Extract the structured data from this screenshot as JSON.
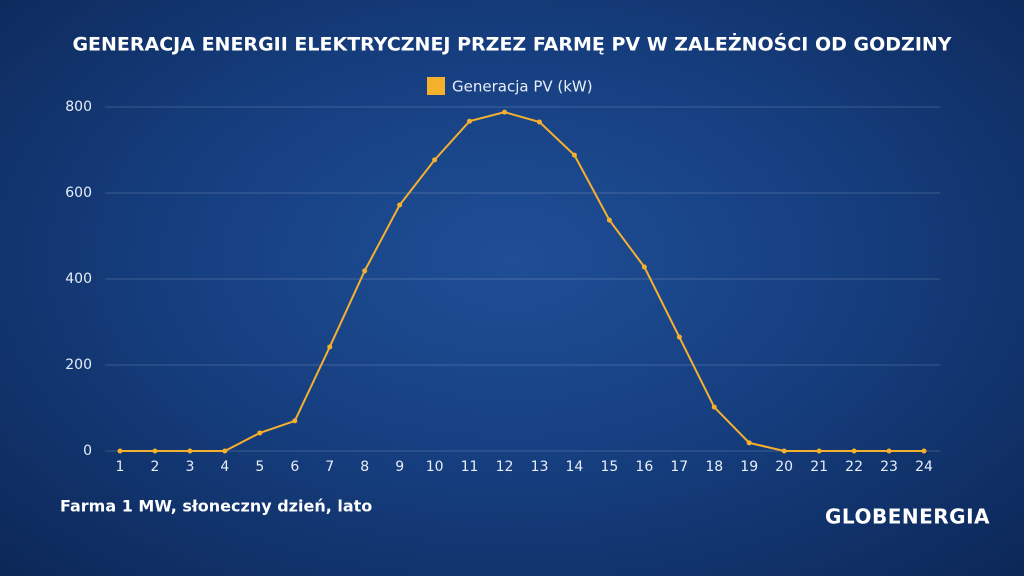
{
  "chart_data": {
    "type": "line",
    "title": "GENERACJA ENERGII ELEKTRYCZNEJ PRZEZ FARMĘ PV W ZALEŻNOŚCI OD GODZINY",
    "categories": [
      "1",
      "2",
      "3",
      "4",
      "5",
      "6",
      "7",
      "8",
      "9",
      "10",
      "11",
      "12",
      "13",
      "14",
      "15",
      "16",
      "17",
      "18",
      "19",
      "20",
      "21",
      "22",
      "23",
      "24"
    ],
    "series": [
      {
        "name": "Generacja PV (kW)",
        "color": "#f5b02e",
        "values": [
          0,
          0,
          0,
          0,
          42,
          70,
          242,
          419,
          572,
          677,
          767,
          788,
          765,
          688,
          537,
          428,
          265,
          102,
          19,
          0,
          0,
          0,
          0,
          0
        ]
      }
    ],
    "ylim": [
      0,
      800
    ],
    "yticks": [
      0,
      200,
      400,
      600,
      800
    ],
    "grid": true,
    "legend": "top",
    "annotation": "Farma 1 MW, słoneczny dzień, lato",
    "logo": "GLOBENERGIA"
  }
}
